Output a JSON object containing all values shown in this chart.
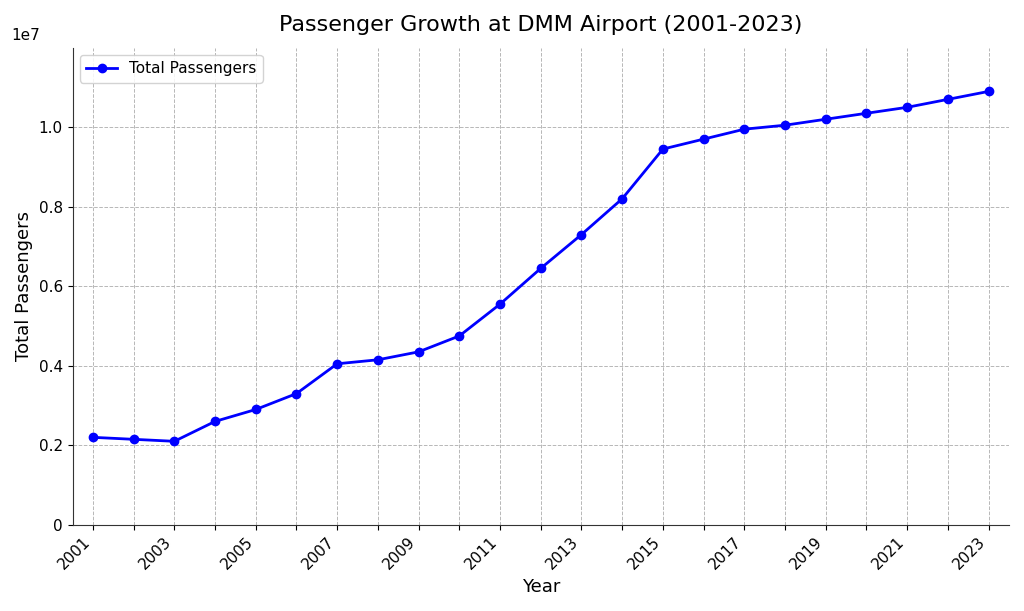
{
  "title": "Passenger Growth at DMM Airport (2001-2023)",
  "xlabel": "Year",
  "ylabel": "Total Passengers",
  "legend_label": "Total Passengers",
  "line_color": "blue",
  "marker": "o",
  "marker_color": "blue",
  "background_color": "#ffffff",
  "grid_color": "#b0b0b0",
  "grid_style": "--",
  "years": [
    2001,
    2002,
    2003,
    2004,
    2005,
    2006,
    2007,
    2008,
    2009,
    2010,
    2011,
    2012,
    2013,
    2014,
    2015,
    2016,
    2017,
    2018,
    2019,
    2020,
    2021,
    2022,
    2023
  ],
  "passengers": [
    2200000,
    2150000,
    2100000,
    2600000,
    2900000,
    3300000,
    4050000,
    4150000,
    4350000,
    4750000,
    5550000,
    6450000,
    7300000,
    8200000,
    9450000,
    9700000,
    9950000,
    10050000,
    10200000,
    10350000,
    10500000,
    10700000,
    10900000
  ],
  "ylim": [
    0,
    12000000
  ],
  "ytick_positions": [
    0,
    2000000,
    4000000,
    6000000,
    8000000,
    10000000
  ],
  "ytick_labels": [
    "0",
    "0.2",
    "0.4",
    "0.6",
    "0.8",
    "1.0"
  ],
  "title_fontsize": 16,
  "axis_label_fontsize": 13,
  "tick_fontsize": 11,
  "legend_fontsize": 11,
  "xlim_left": 2000.5,
  "xlim_right": 2023.5
}
